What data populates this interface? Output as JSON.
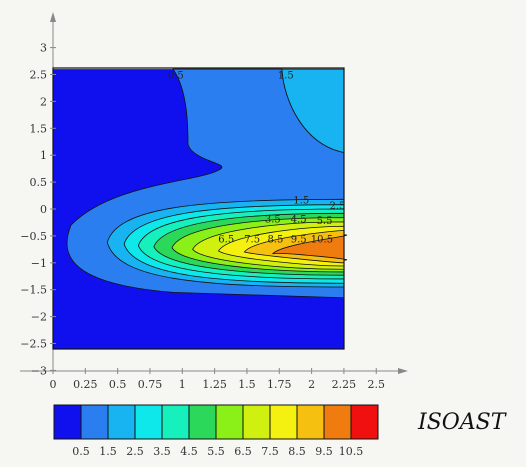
{
  "chart_data": {
    "type": "contour",
    "title": "",
    "xlabel": "",
    "ylabel": "",
    "xlim": [
      0,
      2.5
    ],
    "ylim": [
      -3,
      3
    ],
    "x_ticks": [
      "0",
      "0.25",
      "0.5",
      "0.75",
      "1",
      "1.25",
      "1.5",
      "1.75",
      "2",
      "2.25",
      "2.5"
    ],
    "y_ticks": [
      "−3",
      "−2.5",
      "−2",
      "−1.5",
      "−1",
      "−0.5",
      "0",
      "0.5",
      "1",
      "1.5",
      "2",
      "2.5",
      "3"
    ],
    "data_extent": {
      "x": [
        0,
        2.25
      ],
      "y": [
        -2.6,
        2.6
      ]
    },
    "levels": [
      0.5,
      1.5,
      2.5,
      3.5,
      4.5,
      5.5,
      6.5,
      7.5,
      8.5,
      9.5,
      10.5
    ],
    "contour_labels": [
      {
        "text": "0.5",
        "x": 0.95,
        "y": 2.5
      },
      {
        "text": "1.5",
        "x": 1.8,
        "y": 2.5
      },
      {
        "text": "1.5",
        "x": 1.92,
        "y": 0.18
      },
      {
        "text": "2.5",
        "x": 2.2,
        "y": 0.07
      },
      {
        "text": "3.5",
        "x": 1.7,
        "y": -0.18
      },
      {
        "text": "4.5",
        "x": 1.9,
        "y": -0.18
      },
      {
        "text": "5.5",
        "x": 2.1,
        "y": -0.2
      },
      {
        "text": "6.5",
        "x": 1.34,
        "y": -0.55
      },
      {
        "text": "7.5",
        "x": 1.54,
        "y": -0.55
      },
      {
        "text": "8.5",
        "x": 1.72,
        "y": -0.55
      },
      {
        "text": "9.5",
        "x": 1.9,
        "y": -0.55
      },
      {
        "text": "10.5",
        "x": 2.08,
        "y": -0.55
      }
    ],
    "legend": {
      "labels": [
        "0.5",
        "1.5",
        "2.5",
        "3.5",
        "4.5",
        "5.5",
        "6.5",
        "7.5",
        "8.5",
        "9.5",
        "10.5"
      ],
      "colors": [
        "#1010ee",
        "#2a7ef0",
        "#18b4f2",
        "#0ee8ea",
        "#16f0bc",
        "#2bd85a",
        "#8af018",
        "#d0f010",
        "#f4f010",
        "#f6c010",
        "#f07c10",
        "#f01010"
      ],
      "title": "ISOAST"
    }
  }
}
